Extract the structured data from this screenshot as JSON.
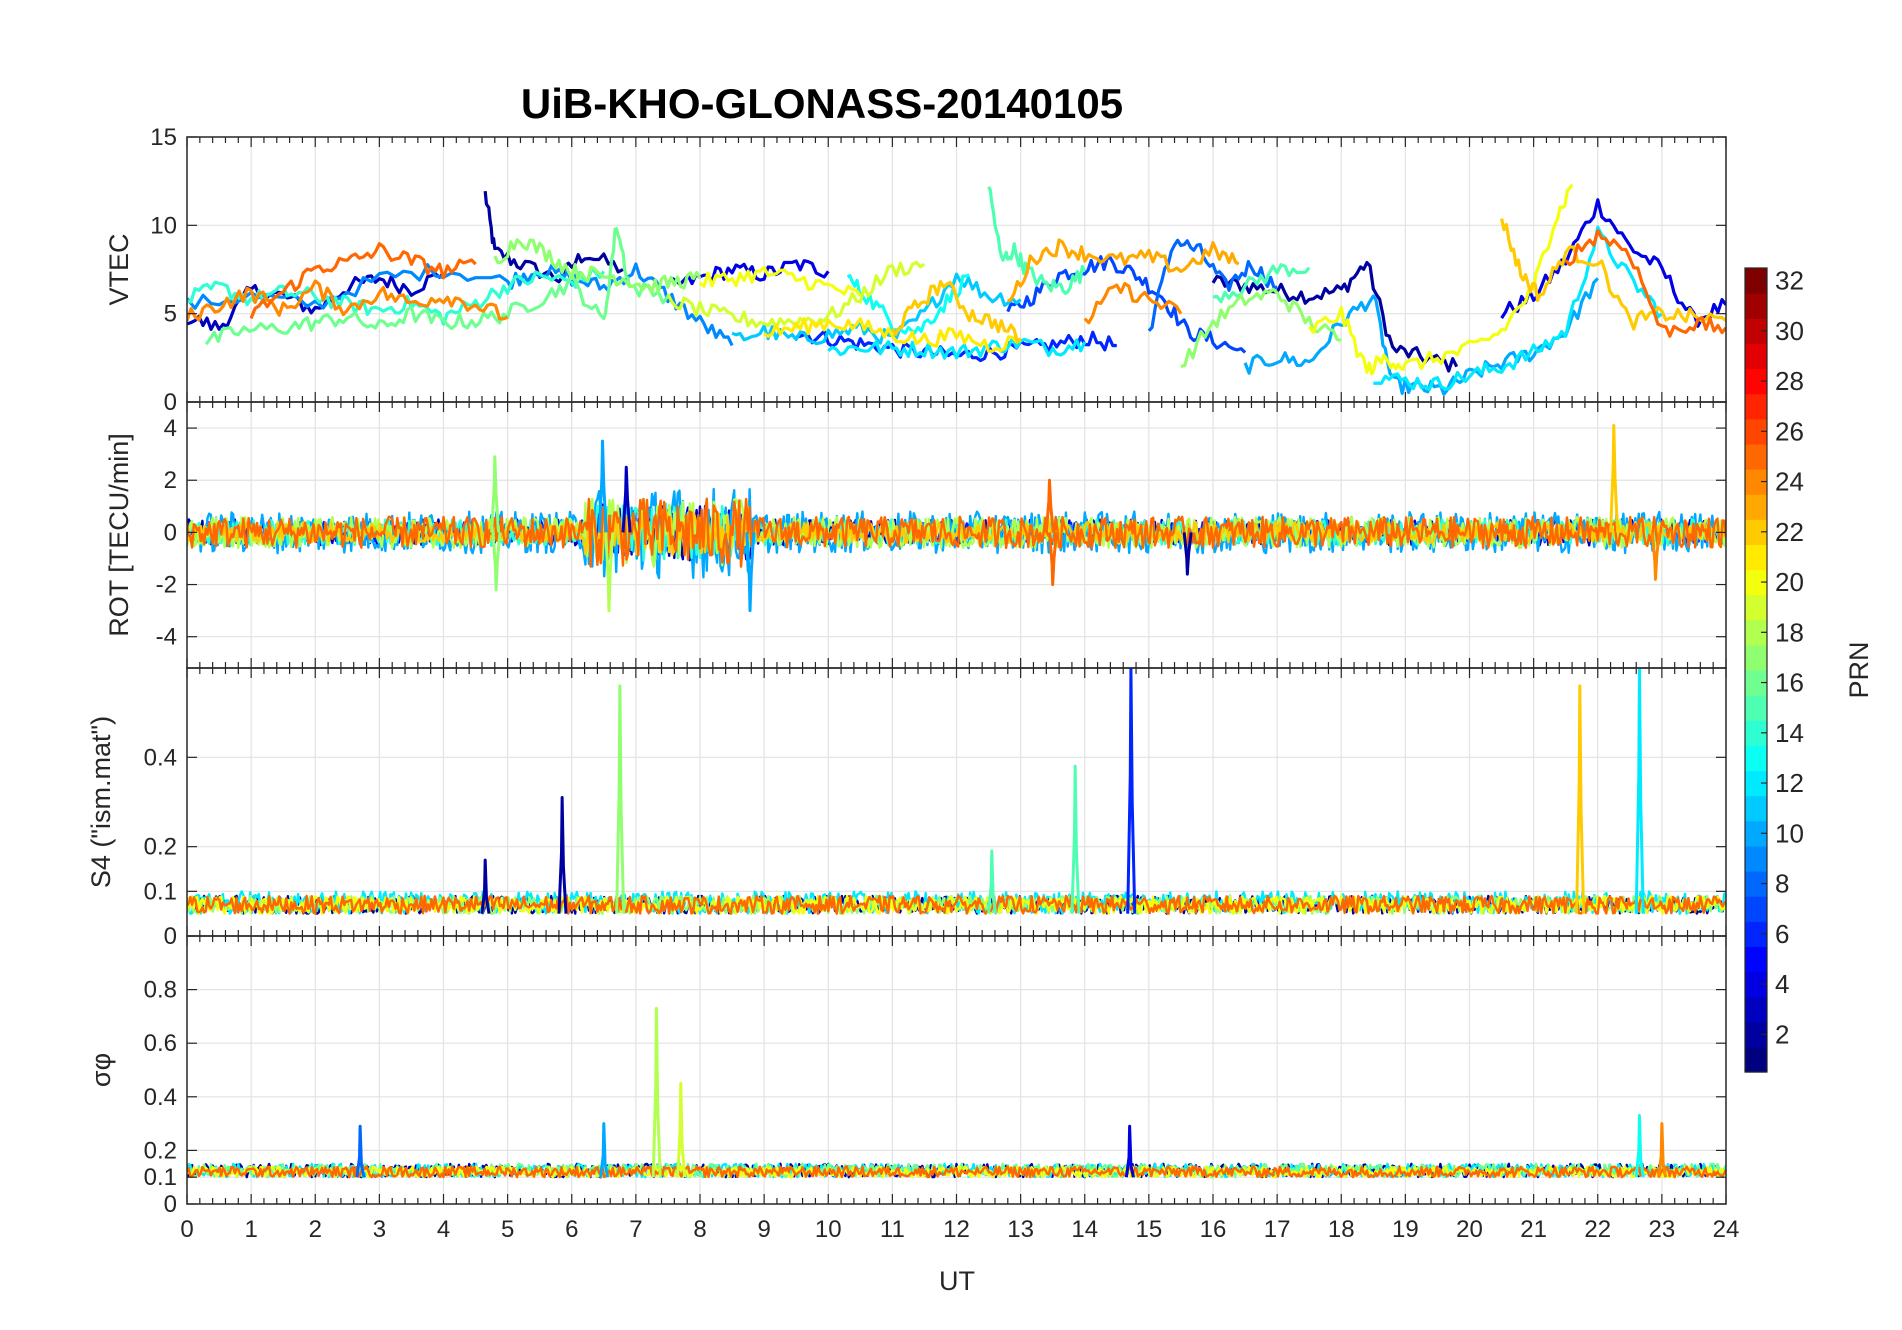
{
  "chart_data": {
    "type": "line",
    "title": "UiB-KHO-GLONASS-20140105",
    "xlabel": "UT",
    "xlim": [
      0,
      24
    ],
    "xticks": [
      "0",
      "1",
      "2",
      "3",
      "4",
      "5",
      "6",
      "7",
      "8",
      "9",
      "10",
      "11",
      "12",
      "13",
      "14",
      "15",
      "16",
      "17",
      "18",
      "19",
      "20",
      "21",
      "22",
      "23",
      "24"
    ],
    "grid": true,
    "colormap": "jet",
    "colorbar": {
      "label": "PRN",
      "range": [
        1,
        32
      ],
      "ticks": [
        "2",
        "4",
        "6",
        "8",
        "10",
        "12",
        "14",
        "16",
        "18",
        "20",
        "22",
        "24",
        "26",
        "28",
        "30",
        "32"
      ]
    },
    "panels": [
      {
        "ylabel": "VTEC",
        "ylim": [
          0,
          15
        ],
        "yticks": [
          "0",
          "5",
          "10",
          "15"
        ],
        "series": [
          {
            "prn": 2,
            "x": [
              4.65,
              4.8,
              5.2,
              5.8,
              6.2,
              6.8
            ],
            "y": [
              11.8,
              8.5,
              7.8,
              7.0,
              8.4,
              7.5
            ]
          },
          {
            "prn": 2,
            "x": [
              16.0,
              16.5,
              17.0,
              17.5,
              18.0,
              18.4,
              18.8,
              19.3,
              19.8
            ],
            "y": [
              6.8,
              6.6,
              6.3,
              6.0,
              6.3,
              7.9,
              3.0,
              2.5,
              2.0
            ]
          },
          {
            "prn": 3,
            "x": [
              0.0,
              0.5,
              1.0,
              1.5,
              2.0,
              2.5,
              3.0,
              3.5,
              4.0
            ],
            "y": [
              4.8,
              4.2,
              6.3,
              6.0,
              5.2,
              6.5,
              7.0,
              6.4,
              7.3
            ]
          },
          {
            "prn": 4,
            "x": [
              20.5,
              21.0,
              21.5,
              22.0,
              22.5,
              23.0,
              23.5,
              24.0
            ],
            "y": [
              5.0,
              6.0,
              8.0,
              11.2,
              8.8,
              7.5,
              4.6,
              5.5
            ]
          },
          {
            "prn": 4,
            "x": [
              7.5,
              8.0,
              8.5,
              9.0,
              9.5,
              10.0
            ],
            "y": [
              6.5,
              7.0,
              7.5,
              7.2,
              7.8,
              7.4
            ]
          },
          {
            "prn": 6,
            "x": [
              9.5,
              10.0,
              10.5,
              11.0,
              11.5,
              12.0,
              12.5,
              13.0,
              13.5,
              14.0,
              14.5
            ],
            "y": [
              3.9,
              3.6,
              3.3,
              3.0,
              2.8,
              2.6,
              2.8,
              3.0,
              3.2,
              3.6,
              3.2
            ]
          },
          {
            "prn": 7,
            "x": [
              12.8,
              13.2,
              13.6,
              14.0,
              14.4,
              14.8,
              15.2,
              15.6,
              16.0,
              16.5
            ],
            "y": [
              5.0,
              6.0,
              7.2,
              7.6,
              8.0,
              7.2,
              6.0,
              4.0,
              3.5,
              2.8
            ]
          },
          {
            "prn": 8,
            "x": [
              15.0,
              15.4,
              15.8,
              16.2,
              16.6,
              17.0
            ],
            "y": [
              4.0,
              9.2,
              8.5,
              6.5,
              7.8,
              6.5
            ]
          },
          {
            "prn": 9,
            "x": [
              0.0,
              1.0,
              2.0,
              3.0,
              4.0,
              5.0,
              5.5,
              6.0,
              6.5,
              7.0,
              7.5,
              8.0,
              8.5
            ],
            "y": [
              5.5,
              6.0,
              5.5,
              7.0,
              7.5,
              6.8,
              7.5,
              7.0,
              6.5,
              7.5,
              6.0,
              4.5,
              3.2
            ]
          },
          {
            "prn": 10,
            "x": [
              16.5,
              17.0,
              17.5,
              18.0,
              18.5,
              18.8,
              19.2,
              19.6,
              20.0,
              20.5,
              21.0,
              21.5,
              22.0
            ],
            "y": [
              2.0,
              2.5,
              2.2,
              4.5,
              6.0,
              1.0,
              0.8,
              0.7,
              1.5,
              2.2,
              2.8,
              4.0,
              7.0
            ]
          },
          {
            "prn": 11,
            "x": [
              8.5,
              9.0,
              9.5,
              10.0,
              10.5,
              11.0,
              11.5,
              12.0,
              12.5,
              13.0
            ],
            "y": [
              3.5,
              4.0,
              3.5,
              3.8,
              4.2,
              3.5,
              5.0,
              7.2,
              6.0,
              5.8
            ]
          },
          {
            "prn": 12,
            "x": [
              10.0,
              10.5,
              11.0,
              11.5,
              12.0,
              12.5,
              13.0,
              13.5,
              14.0
            ],
            "y": [
              2.9,
              3.1,
              3.0,
              3.0,
              2.8,
              3.1,
              3.4,
              3.0,
              3.4
            ]
          },
          {
            "prn": 12,
            "x": [
              18.5,
              19.0,
              19.5,
              20.0,
              20.5,
              21.0,
              21.5,
              22.0,
              22.5,
              23.0
            ],
            "y": [
              1.5,
              1.2,
              1.0,
              1.5,
              2.0,
              2.8,
              4.0,
              9.5,
              7.0,
              5.0
            ]
          },
          {
            "prn": 13,
            "x": [
              10.3,
              10.6,
              11.0,
              11.4,
              11.8,
              12.2
            ],
            "y": [
              7.0,
              6.0,
              4.5,
              4.0,
              5.5,
              7.2
            ]
          },
          {
            "prn": 14,
            "x": [
              0.0,
              0.5,
              1.0,
              1.5,
              2.0,
              2.5,
              3.0,
              3.5,
              4.0,
              4.5,
              5.0,
              5.5,
              6.0,
              6.5
            ],
            "y": [
              5.8,
              6.5,
              5.8,
              6.2,
              6.0,
              5.5,
              5.2,
              5.6,
              4.8,
              5.6,
              6.6,
              7.1,
              6.8,
              7.4
            ]
          },
          {
            "prn": 15,
            "x": [
              12.5,
              12.7,
              12.9,
              13.1,
              13.4,
              13.7,
              14.0
            ],
            "y": [
              12.3,
              8.0,
              8.6,
              7.4,
              6.6,
              6.5,
              7.4
            ]
          },
          {
            "prn": 15,
            "x": [
              16.0,
              16.5,
              17.0,
              17.5
            ],
            "y": [
              6.0,
              6.5,
              7.5,
              7.6
            ]
          },
          {
            "prn": 16,
            "x": [
              0.3,
              0.8,
              1.5,
              2.0,
              2.5,
              3.0,
              3.5,
              4.0,
              4.5,
              5.0,
              5.5,
              6.0,
              6.5,
              6.7,
              6.9,
              7.5
            ],
            "y": [
              3.4,
              4.0,
              4.2,
              4.5,
              4.8,
              4.2,
              5.0,
              4.5,
              4.6,
              5.0,
              5.8,
              6.8,
              4.5,
              10.1,
              6.5,
              6.0
            ]
          },
          {
            "prn": 17,
            "x": [
              15.5,
              16.0,
              16.5,
              17.0,
              17.5,
              18.0
            ],
            "y": [
              2.0,
              4.5,
              5.8,
              6.2,
              4.5,
              3.5
            ]
          },
          {
            "prn": 17,
            "x": [
              4.8,
              5.2,
              5.6,
              6.0,
              6.4,
              6.8,
              7.2,
              7.6,
              8.0
            ],
            "y": [
              8.0,
              9.3,
              8.4,
              7.4,
              7.2,
              7.0,
              6.5,
              6.8,
              7.0
            ]
          },
          {
            "prn": 19,
            "x": [
              7.5,
              8.0,
              8.5,
              9.0,
              9.5,
              10.0,
              10.5,
              11.0,
              11.5
            ],
            "y": [
              5.8,
              5.2,
              4.8,
              4.5,
              4.6,
              4.8,
              6.0,
              7.5,
              7.8
            ]
          },
          {
            "prn": 20,
            "x": [
              8.0,
              8.5,
              9.0,
              9.5,
              10.0,
              10.5
            ],
            "y": [
              6.8,
              7.0,
              7.3,
              7.0,
              6.5,
              6.0
            ]
          },
          {
            "prn": 20,
            "x": [
              17.5,
              18.0,
              18.4,
              18.7,
              19.0,
              19.5,
              20.0,
              20.5,
              21.0,
              21.3,
              21.6
            ],
            "y": [
              4.0,
              5.0,
              1.8,
              2.5,
              2.0,
              2.5,
              3.0,
              4.0,
              6.5,
              10.0,
              12.3
            ]
          },
          {
            "prn": 21,
            "x": [
              9.0,
              9.5,
              10.0,
              10.5,
              11.0,
              11.5,
              12.0,
              12.5,
              13.0
            ],
            "y": [
              3.9,
              4.2,
              4.5,
              4.3,
              3.8,
              3.5,
              3.8,
              3.2,
              3.5
            ]
          },
          {
            "prn": 22,
            "x": [
              20.5,
              20.8,
              21.1,
              21.5,
              22.0,
              22.5,
              23.0,
              23.5,
              24.0
            ],
            "y": [
              10.5,
              7.3,
              6.0,
              8.5,
              8.0,
              4.5,
              5.0,
              4.8,
              4.6
            ]
          },
          {
            "prn": 22,
            "x": [
              11.0,
              11.4,
              11.8,
              12.2,
              12.6,
              13.0
            ],
            "y": [
              4.0,
              5.5,
              6.8,
              5.0,
              4.5,
              3.6
            ]
          },
          {
            "prn": 23,
            "x": [
              12.8,
              13.2,
              13.6,
              14.0,
              14.5,
              15.0,
              15.5,
              16.0,
              16.4
            ],
            "y": [
              5.5,
              8.2,
              8.8,
              8.4,
              8.0,
              8.2,
              7.5,
              8.6,
              7.8
            ]
          },
          {
            "prn": 24,
            "x": [
              0.0,
              0.5,
              1.0,
              1.5,
              2.0,
              2.5,
              3.0,
              3.5,
              4.0,
              4.5,
              5.0
            ],
            "y": [
              4.8,
              5.5,
              6.2,
              5.2,
              6.5,
              5.2,
              6.2,
              5.6,
              6.0,
              5.5,
              4.8
            ]
          },
          {
            "prn": 24,
            "x": [
              14.0,
              14.5,
              15.0,
              15.5
            ],
            "y": [
              4.5,
              6.5,
              5.8,
              5.0
            ]
          },
          {
            "prn": 25,
            "x": [
              1.0,
              1.5,
              2.0,
              2.5,
              3.0,
              3.5,
              4.0,
              4.5
            ],
            "y": [
              5.0,
              6.2,
              7.6,
              7.9,
              8.6,
              8.0,
              7.4,
              7.8
            ]
          },
          {
            "prn": 25,
            "x": [
              21.5,
              22.0,
              22.5,
              23.0,
              23.5,
              24.0
            ],
            "y": [
              8.0,
              9.5,
              8.5,
              4.0,
              4.4,
              4.2
            ]
          }
        ]
      },
      {
        "ylabel": "ROT [TECU/min]",
        "ylim": [
          -5.2,
          5.0
        ],
        "yticks": [
          "-4",
          "-2",
          "0",
          "2",
          "4"
        ],
        "series": [
          {
            "prn": 3,
            "amp": 0.5
          },
          {
            "prn": 6,
            "amp": 0.4
          },
          {
            "prn": 10,
            "amp": 0.8
          },
          {
            "prn": 14,
            "amp": 0.5
          },
          {
            "prn": 18,
            "amp": 0.6
          },
          {
            "prn": 22,
            "amp": 0.4
          },
          {
            "prn": 25,
            "amp": 0.6
          }
        ],
        "spikes": [
          {
            "prn": 10,
            "x": 6.48,
            "y": 3.5
          },
          {
            "prn": 18,
            "x": 6.58,
            "y": -3.0
          },
          {
            "prn": 10,
            "x": 8.78,
            "y": -3.0
          },
          {
            "prn": 17,
            "x": 4.8,
            "y": 2.9
          },
          {
            "prn": 17,
            "x": 4.82,
            "y": -2.2
          },
          {
            "prn": 3,
            "x": 6.85,
            "y": 2.5
          },
          {
            "prn": 25,
            "x": 13.5,
            "y": -2.0
          },
          {
            "prn": 25,
            "x": 13.45,
            "y": 2.0
          },
          {
            "prn": 22,
            "x": 22.25,
            "y": 4.1
          },
          {
            "prn": 24,
            "x": 22.9,
            "y": -1.8
          },
          {
            "prn": 2,
            "x": 15.6,
            "y": -1.6
          }
        ]
      },
      {
        "ylabel": "S4 (\"ism.mat\")",
        "ylim": [
          0,
          0.6
        ],
        "yticks": [
          "0",
          "0.1",
          "0.2",
          "0.4"
        ],
        "series": [
          {
            "prn": 2,
            "amp": 0.04
          },
          {
            "prn": 12,
            "amp": 0.05
          },
          {
            "prn": 17,
            "amp": 0.04
          },
          {
            "prn": 20,
            "amp": 0.04
          },
          {
            "prn": 25,
            "amp": 0.04
          }
        ],
        "spikes": [
          {
            "prn": 2,
            "x": 5.85,
            "y": 0.31
          },
          {
            "prn": 2,
            "x": 4.65,
            "y": 0.17
          },
          {
            "prn": 17,
            "x": 6.75,
            "y": 0.56
          },
          {
            "prn": 15,
            "x": 13.85,
            "y": 0.38
          },
          {
            "prn": 6,
            "x": 14.72,
            "y": 0.6
          },
          {
            "prn": 22,
            "x": 21.72,
            "y": 0.56
          },
          {
            "prn": 12,
            "x": 22.65,
            "y": 0.6
          },
          {
            "prn": 15,
            "x": 12.55,
            "y": 0.19
          }
        ]
      },
      {
        "ylabel": "σφ",
        "ylim": [
          0,
          1.0
        ],
        "yticks": [
          "0",
          "0.1",
          "0.2",
          "0.4",
          "0.6",
          "0.8"
        ],
        "series": [
          {
            "prn": 2,
            "amp": 0.05
          },
          {
            "prn": 12,
            "amp": 0.05
          },
          {
            "prn": 16,
            "amp": 0.05
          },
          {
            "prn": 20,
            "amp": 0.04
          },
          {
            "prn": 25,
            "amp": 0.04
          }
        ],
        "spikes": [
          {
            "prn": 18,
            "x": 7.32,
            "y": 0.73
          },
          {
            "prn": 19,
            "x": 7.7,
            "y": 0.45
          },
          {
            "prn": 8,
            "x": 2.7,
            "y": 0.29
          },
          {
            "prn": 13,
            "x": 22.65,
            "y": 0.33
          },
          {
            "prn": 24,
            "x": 23.0,
            "y": 0.3
          },
          {
            "prn": 4,
            "x": 14.7,
            "y": 0.29
          },
          {
            "prn": 10,
            "x": 6.5,
            "y": 0.3
          }
        ]
      }
    ]
  }
}
